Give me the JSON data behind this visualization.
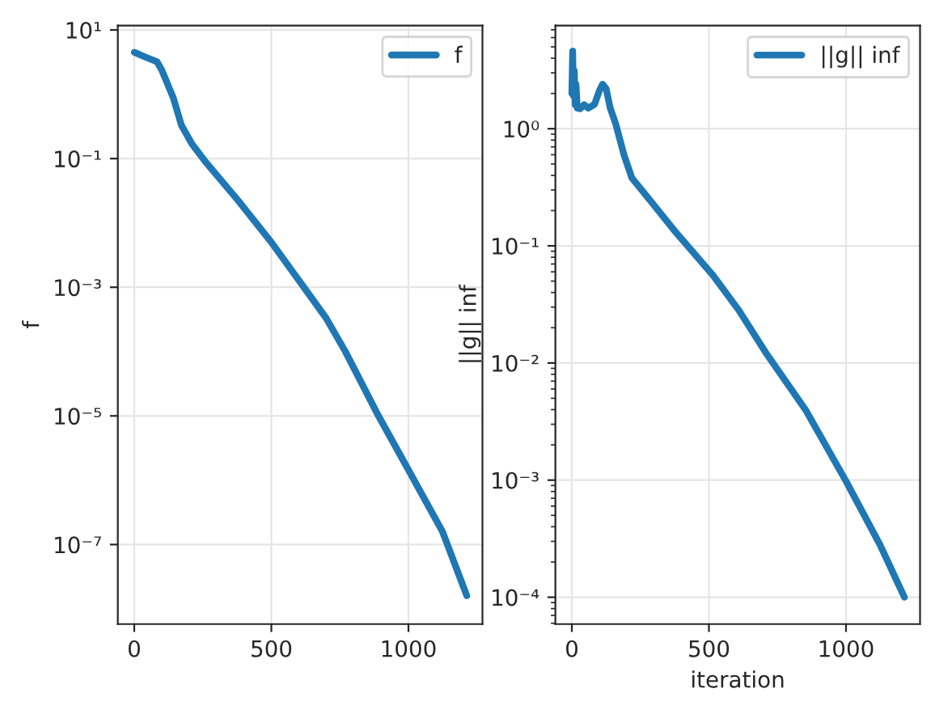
{
  "chart_data": [
    {
      "type": "line",
      "ylabel": "f",
      "log": "y",
      "grid": true,
      "legend": "top right",
      "xlim": [
        -60,
        1270
      ],
      "xticks": [
        0,
        500,
        1000
      ],
      "ylim": [
        5.8e-09,
        11.7
      ],
      "yticks": [
        {
          "value": 10,
          "label": "10¹"
        },
        {
          "value": 0.1,
          "label": "10⁻¹"
        },
        {
          "value": 0.001,
          "label": "10⁻³"
        },
        {
          "value": 1e-05,
          "label": "10⁻⁵"
        },
        {
          "value": 1e-07,
          "label": "10⁻⁷"
        }
      ],
      "series": [
        {
          "name": "f",
          "color": "#1f77b4",
          "x": [
            0,
            40,
            83,
            100,
            142,
            172,
            210,
            260,
            380,
            500,
            615,
            700,
            770,
            888,
            1006,
            1124,
            1213
          ],
          "values": [
            4.5,
            3.8,
            3.2,
            2.4,
            0.89,
            0.33,
            0.17,
            0.089,
            0.022,
            0.005,
            0.00105,
            0.00033,
            0.0001,
            1.05e-05,
            1.3e-06,
            1.6e-07,
            1.6e-08
          ]
        }
      ]
    },
    {
      "type": "line",
      "xlabel": "iteration",
      "ylabel": "||g|| inf",
      "log": "y",
      "grid": true,
      "legend": "top right",
      "xlim": [
        -60,
        1270
      ],
      "xticks": [
        0,
        500,
        1000
      ],
      "ylim": [
        5.9e-05,
        7.6
      ],
      "yticks": [
        {
          "value": 1,
          "label": "10⁰"
        },
        {
          "value": 0.1,
          "label": "10⁻¹"
        },
        {
          "value": 0.01,
          "label": "10⁻²"
        },
        {
          "value": 0.001,
          "label": "10⁻³"
        },
        {
          "value": 0.0001,
          "label": "10⁻⁴"
        }
      ],
      "series": [
        {
          "name": "||g|| inf",
          "color": "#1f77b4",
          "x": [
            0,
            3,
            6,
            9,
            12,
            15,
            20,
            30,
            45,
            60,
            83,
            100,
            112,
            125,
            140,
            160,
            190,
            219,
            260,
            380,
            515,
            610,
            710,
            852,
            1000,
            1124,
            1213
          ],
          "values": [
            2.0,
            4.6,
            1.9,
            3.1,
            1.6,
            2.4,
            1.5,
            1.48,
            1.6,
            1.5,
            1.62,
            2.1,
            2.4,
            2.2,
            1.5,
            1.1,
            0.6,
            0.38,
            0.29,
            0.13,
            0.056,
            0.028,
            0.012,
            0.004,
            0.00098,
            0.00028,
            0.0001
          ]
        }
      ]
    }
  ]
}
